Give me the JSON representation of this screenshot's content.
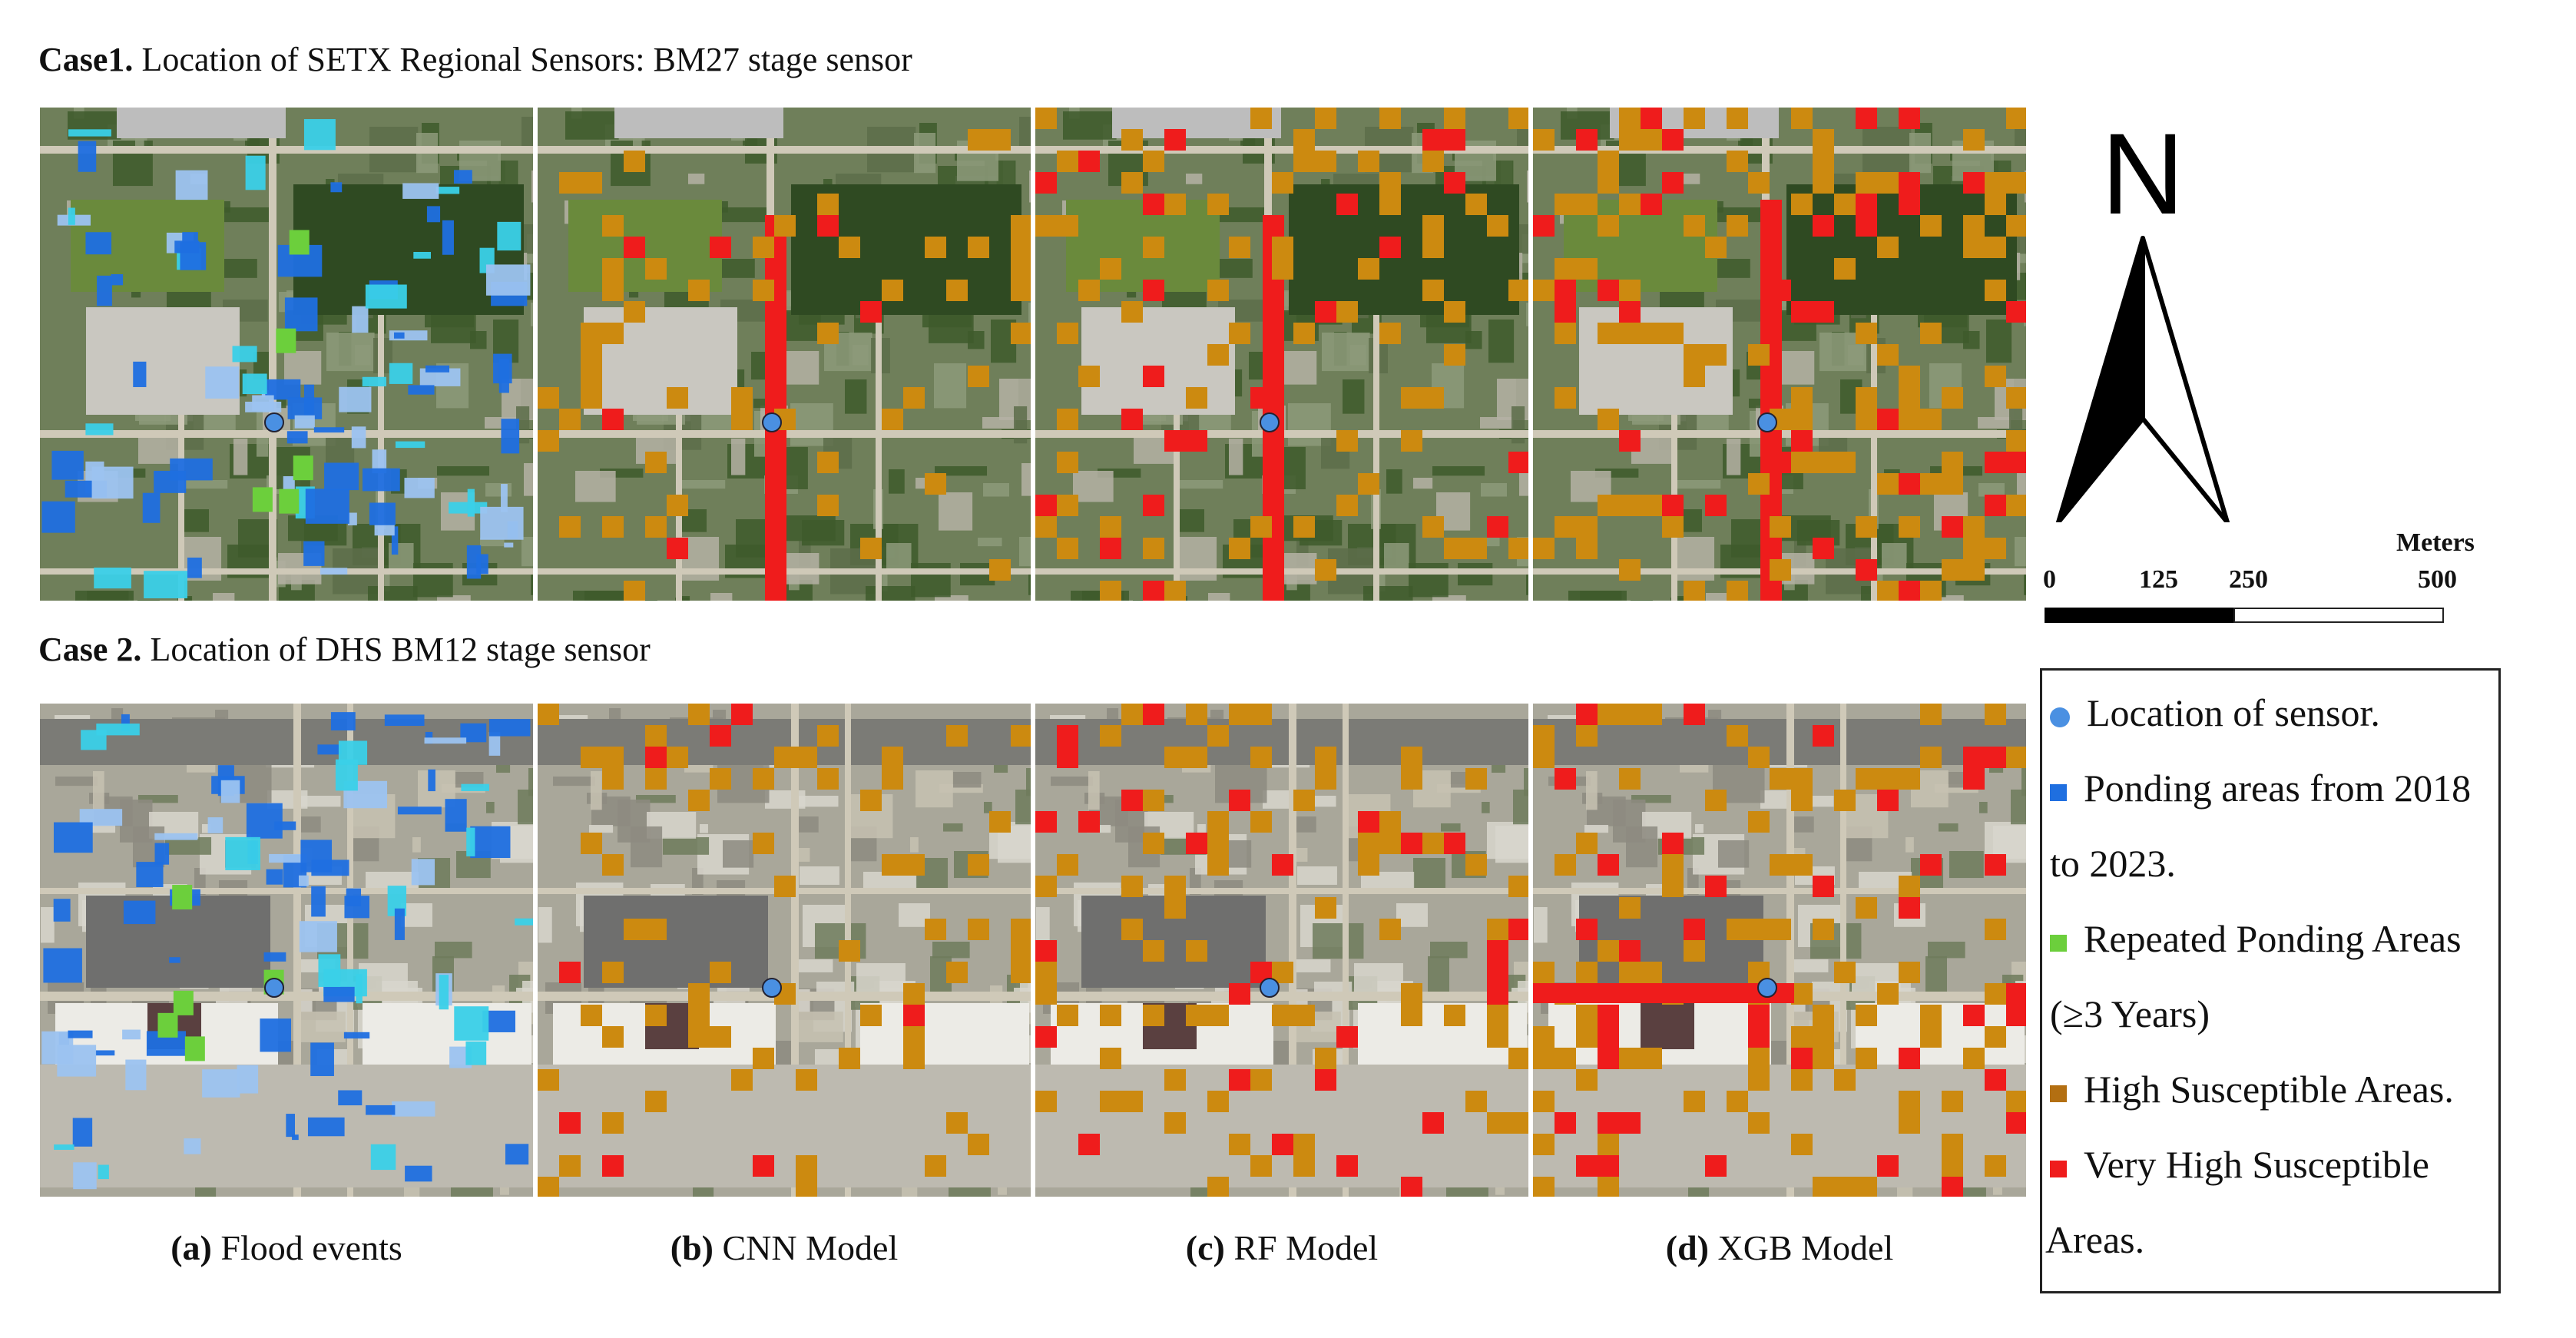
{
  "case1": {
    "bold": "Case1.",
    "text": " Location of SETX Regional Sensors: BM27 stage sensor"
  },
  "case2": {
    "bold": "Case 2.",
    "text": " Location of DHS BM12 stage sensor"
  },
  "captions": [
    {
      "bold": "(a)",
      "text": " Flood events"
    },
    {
      "bold": "(b)",
      "text": " CNN Model"
    },
    {
      "bold": "(c)",
      "text": " RF Model"
    },
    {
      "bold": "(d)",
      "text": " XGB Model"
    }
  ],
  "north_label": "N",
  "scalebar": {
    "unit": "Meters",
    "ticks": [
      "0",
      "125",
      "250",
      "500"
    ]
  },
  "legend": {
    "sensor": "Location of sensor.",
    "ponding_1": "Ponding areas from 2018",
    "ponding_2": "to 2023.",
    "repeated_1": "Repeated Ponding Areas",
    "repeated_2": "(≥3 Years)",
    "high": "High Susceptible Areas.",
    "very_high_1": "Very High Susceptible",
    "very_high_2": "Areas."
  },
  "colors": {
    "sensor": "#4a90e2",
    "ponding": "#1f6fe0",
    "ponding_light": "#9cc3f0",
    "ponding_cyan": "#3ad0e8",
    "repeated": "#6ccf3c",
    "high": "#cc8a10",
    "very_high": "#ef1c1c"
  }
}
